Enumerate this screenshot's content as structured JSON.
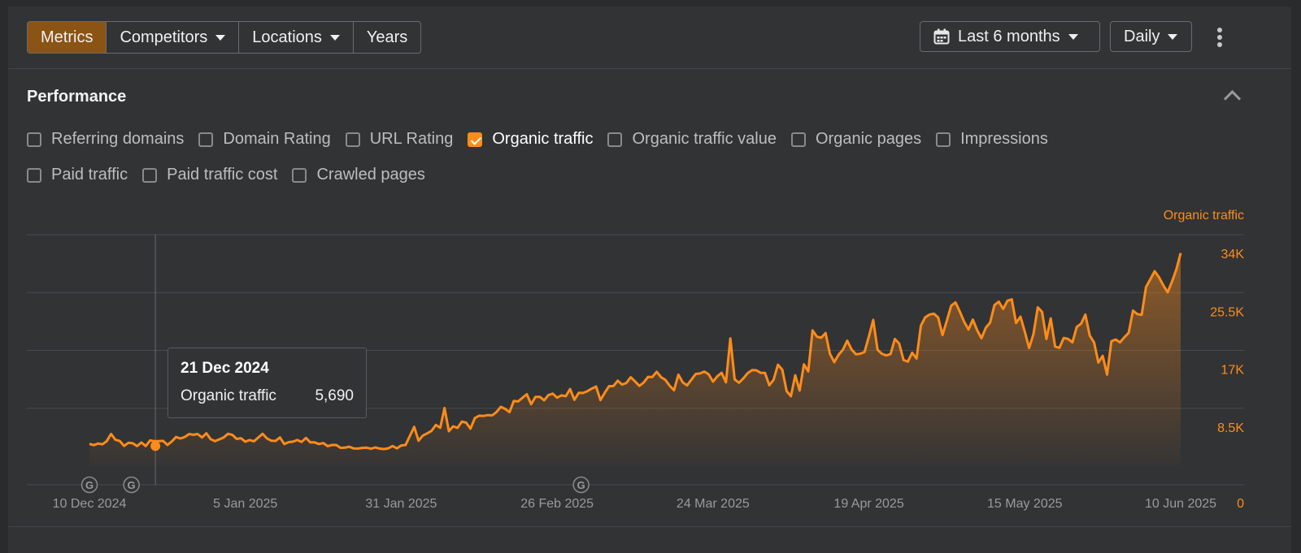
{
  "toolbar": {
    "tabs": [
      {
        "label": "Metrics",
        "active": true,
        "dropdown": false
      },
      {
        "label": "Competitors",
        "active": false,
        "dropdown": true
      },
      {
        "label": "Locations",
        "active": false,
        "dropdown": true
      },
      {
        "label": "Years",
        "active": false,
        "dropdown": false
      }
    ],
    "period_label": "Last 6 months",
    "period_icon": "calendar-icon",
    "interval_label": "Daily",
    "more_icon": "kebab-icon"
  },
  "performance": {
    "title": "Performance",
    "metrics_row1": [
      {
        "label": "Referring domains",
        "checked": false
      },
      {
        "label": "Domain Rating",
        "checked": false
      },
      {
        "label": "URL Rating",
        "checked": false
      },
      {
        "label": "Organic traffic",
        "checked": true
      },
      {
        "label": "Organic traffic value",
        "checked": false
      },
      {
        "label": "Organic pages",
        "checked": false
      },
      {
        "label": "Impressions",
        "checked": false
      }
    ],
    "metrics_row2": [
      {
        "label": "Paid traffic",
        "checked": false
      },
      {
        "label": "Paid traffic cost",
        "checked": false
      },
      {
        "label": "Crawled pages",
        "checked": false
      }
    ]
  },
  "tooltip": {
    "date": "21 Dec 2024",
    "series": "Organic traffic",
    "value": "5,690"
  },
  "colors": {
    "accent": "#ff8c1a",
    "active_tab": "#8a5414",
    "background": "#323335"
  },
  "chart_data": {
    "type": "area",
    "series_name": "Organic traffic",
    "x_start": "10 Dec 2024",
    "x_end": "10 Jun 2025",
    "x_ticks": [
      "10 Dec 2024",
      "5 Jan 2025",
      "31 Jan 2025",
      "26 Feb 2025",
      "24 Mar 2025",
      "19 Apr 2025",
      "15 May 2025",
      "10 Jun 2025"
    ],
    "y_ticks": [
      "0",
      "8.5K",
      "17K",
      "25.5K",
      "34K"
    ],
    "y_tick_values": [
      0,
      8500,
      17000,
      25500,
      34000
    ],
    "ylim": [
      0,
      34000
    ],
    "y_axis_label": "Organic traffic",
    "grid": true,
    "annotation_markers": [
      {
        "label": "G",
        "date": "10 Dec 2024"
      },
      {
        "label": "G",
        "date": "17 Dec 2024"
      },
      {
        "label": "G",
        "date": "2 Mar 2025"
      }
    ],
    "highlight": {
      "date": "21 Dec 2024",
      "value": 5690
    },
    "values": [
      6010,
      5820,
      6060,
      5950,
      6420,
      7470,
      6610,
      6430,
      5710,
      6170,
      6100,
      5690,
      6210,
      5690,
      6510,
      6410,
      6410,
      6460,
      5860,
      6360,
      7020,
      6800,
      7010,
      7460,
      7350,
      7460,
      6960,
      7560,
      6710,
      6410,
      6680,
      6960,
      7490,
      7340,
      6740,
      6840,
      6340,
      6570,
      6400,
      6960,
      7490,
      6810,
      6480,
      6460,
      6960,
      5990,
      6260,
      6330,
      6570,
      6300,
      6880,
      6240,
      6230,
      5990,
      6130,
      5680,
      5850,
      5840,
      5430,
      5450,
      5590,
      5340,
      5320,
      5420,
      5450,
      5300,
      5490,
      5320,
      5250,
      5360,
      5690,
      5360,
      5770,
      5850,
      7180,
      8510,
      6480,
      7240,
      7550,
      7920,
      8790,
      8380,
      11270,
      7870,
      8590,
      8360,
      9280,
      9130,
      8240,
      9810,
      10150,
      10120,
      10240,
      10200,
      10690,
      11450,
      11160,
      10670,
      12310,
      12240,
      12780,
      13300,
      11830,
      12910,
      12920,
      12420,
      13180,
      13390,
      12800,
      13140,
      13020,
      14060,
      12490,
      13520,
      13490,
      13760,
      14130,
      14440,
      12440,
      13520,
      14480,
      14510,
      15290,
      14720,
      14960,
      15800,
      15190,
      14530,
      15030,
      15860,
      15840,
      16610,
      15810,
      15410,
      14550,
      13890,
      16180,
      15050,
      14600,
      15420,
      16280,
      16350,
      16630,
      16240,
      15150,
      15940,
      16450,
      15060,
      21500,
      15480,
      15000,
      15620,
      16400,
      16840,
      16820,
      16450,
      16440,
      14630,
      15420,
      17650,
      16910,
      13770,
      13020,
      16080,
      13850,
      17690,
      16660,
      22680,
      21750,
      21610,
      22300,
      19250,
      18010,
      19100,
      19840,
      21160,
      19870,
      19170,
      19250,
      19500,
      21800,
      24220,
      19840,
      19250,
      19000,
      19200,
      21410,
      20760,
      18330,
      18100,
      19400,
      18560,
      23360,
      24600,
      25000,
      25140,
      24570,
      22000,
      24100,
      26320,
      26790,
      25450,
      23950,
      22810,
      24260,
      22730,
      21520,
      23070,
      23830,
      26400,
      26900,
      25840,
      27040,
      27240,
      23770,
      24700,
      22500,
      20090,
      22110,
      26070,
      25400,
      21420,
      24450,
      20300,
      20120,
      21570,
      21430,
      20920,
      23190,
      23660,
      25000,
      21910,
      20920,
      17950,
      18940,
      16190,
      21080,
      21340,
      20920,
      21680,
      22330,
      25590,
      25070,
      24980,
      29050,
      30200,
      31370,
      30480,
      29300,
      28270,
      29840,
      31650,
      34050
    ]
  }
}
